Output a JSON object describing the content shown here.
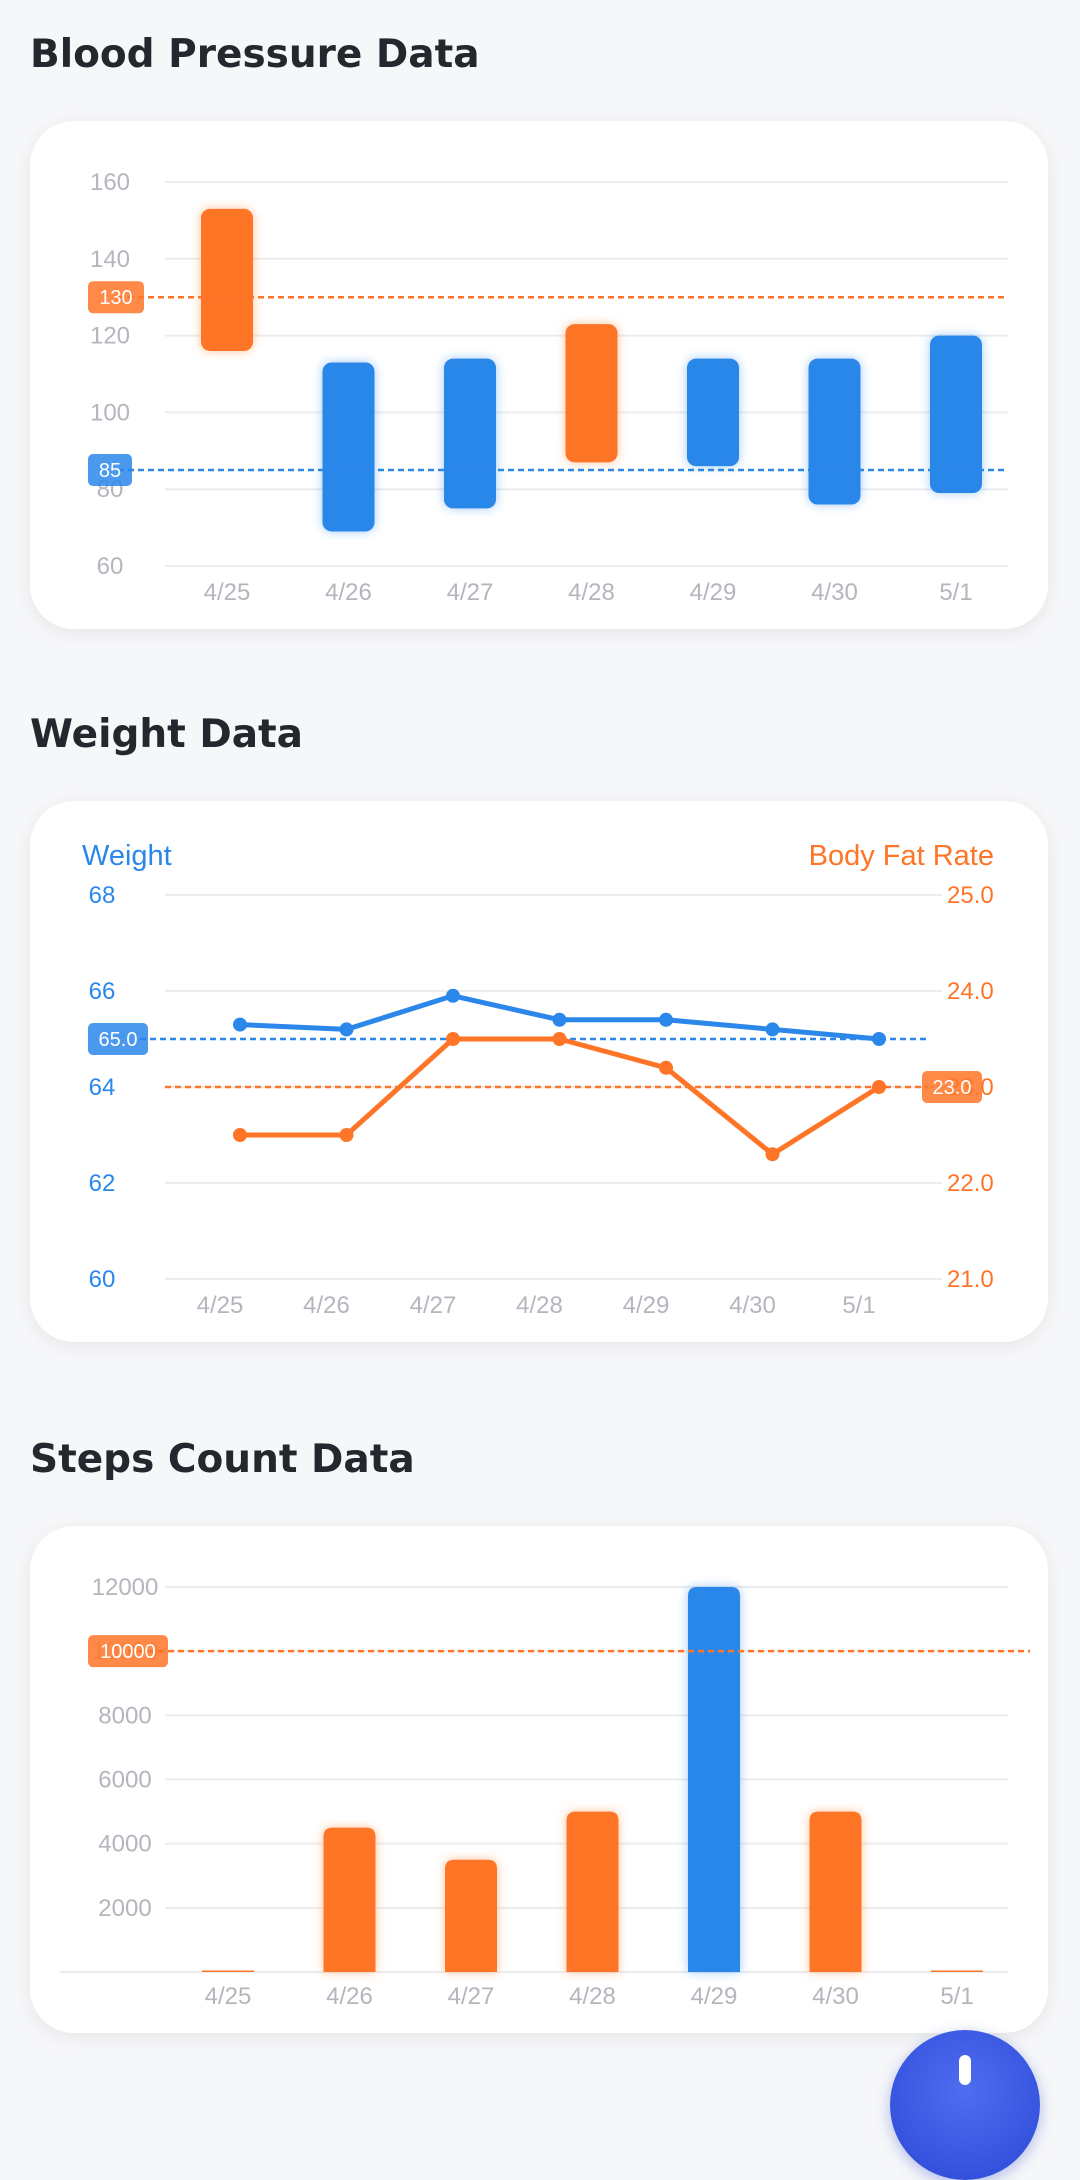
{
  "colors": {
    "blue": "#2b87ea",
    "orange": "#ff7528",
    "grid": "#ececef",
    "tick": "#b3b6bd"
  },
  "sections": {
    "blood_pressure": {
      "title": "Blood Pressure Data"
    },
    "weight": {
      "title": "Weight Data"
    },
    "steps": {
      "title": "Steps Count Data"
    }
  },
  "fab": {
    "icon": "exclamation-icon"
  },
  "chart_data": [
    {
      "type": "bar",
      "subtype": "floating-range",
      "categories": [
        "4/25",
        "4/26",
        "4/27",
        "4/28",
        "4/29",
        "4/30",
        "5/1"
      ],
      "ylim": [
        60,
        160
      ],
      "yticks": [
        60,
        80,
        100,
        120,
        140,
        160
      ],
      "ranges": [
        [
          116,
          153
        ],
        [
          69,
          113
        ],
        [
          75,
          114
        ],
        [
          87,
          123
        ],
        [
          86,
          114
        ],
        [
          76,
          114
        ],
        [
          79,
          120
        ]
      ],
      "status": [
        "high",
        "normal",
        "normal",
        "high",
        "normal",
        "normal",
        "normal"
      ],
      "reference_lines": [
        {
          "value": 130,
          "label": "130",
          "color": "orange"
        },
        {
          "value": 85,
          "label": "85",
          "color": "blue"
        }
      ],
      "grid": true,
      "title": "",
      "xlabel": "",
      "ylabel": ""
    },
    {
      "type": "line",
      "categories": [
        "4/25",
        "4/26",
        "4/27",
        "4/28",
        "4/29",
        "4/30",
        "5/1"
      ],
      "series": [
        {
          "name": "Weight",
          "axis": "left",
          "color": "blue",
          "values": [
            65.3,
            65.2,
            65.9,
            65.4,
            65.4,
            65.2,
            65.0
          ]
        },
        {
          "name": "Body Fat Rate",
          "axis": "right",
          "color": "orange",
          "values": [
            22.5,
            22.5,
            23.5,
            23.5,
            23.2,
            22.3,
            23.0
          ]
        }
      ],
      "ylim_left": [
        60,
        68
      ],
      "yticks_left": [
        "60",
        "62",
        "64",
        "66",
        "68"
      ],
      "ylim_right": [
        21.0,
        25.0
      ],
      "yticks_right": [
        "21.0",
        "22.0",
        "23.0",
        "24.0",
        "25.0"
      ],
      "reference_lines": [
        {
          "axis": "left",
          "value": 65.0,
          "label": "65.0",
          "color": "blue"
        },
        {
          "axis": "right",
          "value": 23.0,
          "label": "23.0",
          "color": "orange"
        }
      ],
      "grid": true,
      "title": "",
      "xlabel": "",
      "ylabel": ""
    },
    {
      "type": "bar",
      "categories": [
        "4/25",
        "4/26",
        "4/27",
        "4/28",
        "4/29",
        "4/30",
        "5/1"
      ],
      "values": [
        0,
        4500,
        3500,
        5000,
        12000,
        5000,
        0
      ],
      "status": [
        "low",
        "low",
        "low",
        "low",
        "goal",
        "low",
        "low"
      ],
      "ylim": [
        0,
        12000
      ],
      "yticks": [
        2000,
        4000,
        6000,
        8000,
        10000,
        12000
      ],
      "reference_lines": [
        {
          "value": 10000,
          "label": "10000",
          "color": "orange"
        }
      ],
      "grid": true,
      "title": "",
      "xlabel": "",
      "ylabel": ""
    }
  ]
}
